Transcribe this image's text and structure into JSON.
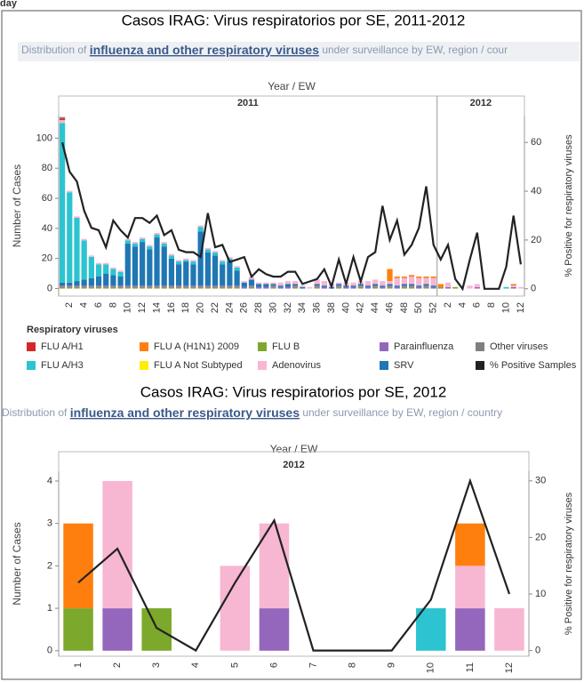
{
  "header": "day",
  "chart_data": [
    {
      "type": "bar",
      "title": "Casos IRAG: Virus respiratorios por SE, 2011-2012",
      "subtitle": [
        "Distribution of ",
        "influenza and other respiratory viruses",
        " under surveillance by EW, region / cour"
      ],
      "x_label": "Year / EW",
      "y_label": "Number of Cases",
      "y2_label": "% Positive for respiratory viruses",
      "legend_title": "Respiratory viruses",
      "groups": [
        {
          "name": "2011",
          "categories": [
            null,
            "2",
            null,
            "4",
            null,
            "6",
            null,
            "8",
            null,
            "10",
            null,
            "12",
            null,
            "14",
            null,
            "16",
            null,
            "18",
            null,
            "20",
            null,
            "22",
            null,
            "24",
            null,
            "26",
            null,
            "28",
            null,
            "30",
            null,
            "32",
            null,
            "34",
            null,
            "36",
            null,
            "38",
            null,
            "40",
            null,
            "42",
            null,
            "44",
            null,
            "46",
            null,
            "48",
            null,
            "50",
            null,
            "52"
          ]
        },
        {
          "name": "2012",
          "categories": [
            null,
            "2",
            null,
            "4",
            null,
            "6",
            null,
            "8",
            null,
            "10",
            null,
            "12"
          ]
        }
      ],
      "series": [
        {
          "name": "FLU A/H1",
          "color": "#d62728",
          "values": [
            1,
            0,
            0,
            0,
            0,
            0,
            0,
            0,
            0,
            0,
            0,
            0,
            0,
            0,
            0,
            0,
            0,
            0,
            0,
            0,
            0,
            0,
            0,
            0,
            0,
            0,
            0,
            0,
            0,
            0,
            0,
            0,
            0,
            0,
            0,
            0,
            0,
            0,
            0,
            0,
            0,
            0,
            0,
            0,
            0,
            0,
            0,
            0,
            0,
            0,
            0,
            0,
            0,
            0,
            0,
            0,
            0,
            0,
            0,
            0,
            0,
            0,
            0,
            0
          ]
        },
        {
          "name": "FLU A/H3",
          "color": "#2bc4d0",
          "values": [
            106,
            60,
            42,
            26,
            14,
            8,
            6,
            4,
            3,
            2,
            2,
            2,
            2,
            2,
            2,
            2,
            2,
            1,
            2,
            3,
            2,
            2,
            2,
            2,
            2,
            0,
            0,
            0,
            0,
            0,
            0,
            0,
            0,
            0,
            0,
            0,
            0,
            0,
            0,
            0,
            0,
            0,
            0,
            0,
            0,
            0,
            0,
            0,
            0,
            0,
            0,
            0,
            0,
            0,
            0,
            0,
            0,
            0,
            0,
            0,
            0,
            1,
            0,
            0
          ]
        },
        {
          "name": "FLU A (H1N1) 2009",
          "color": "#ff7f0e",
          "values": [
            0,
            0,
            0,
            0,
            0,
            0,
            0,
            0,
            0,
            0,
            0,
            0,
            0,
            0,
            0,
            0,
            0,
            0,
            0,
            0,
            0,
            0,
            0,
            0,
            0,
            0,
            0,
            0,
            0,
            0,
            0,
            0,
            0,
            0,
            0,
            0,
            0,
            0,
            0,
            0,
            0,
            0,
            0,
            0,
            0,
            8,
            1,
            1,
            1,
            1,
            1,
            1,
            2,
            0,
            0,
            0,
            0,
            0,
            0,
            0,
            0,
            0,
            1,
            0
          ]
        },
        {
          "name": "FLU A Not Subtyped",
          "color": "#ffee00",
          "values": [
            0,
            0,
            0,
            0,
            0,
            0,
            0,
            0,
            0,
            0,
            0,
            0,
            0,
            0,
            0,
            0,
            0,
            0,
            0,
            0,
            0,
            0,
            0,
            0,
            0,
            0,
            0,
            0,
            0,
            0,
            0,
            0,
            0,
            0,
            0,
            0,
            0,
            0,
            0,
            0,
            0,
            0,
            0,
            0,
            0,
            0,
            0,
            0,
            0,
            0,
            0,
            0,
            0,
            0,
            0,
            0,
            0,
            0,
            0,
            0,
            0,
            0,
            0,
            0
          ]
        },
        {
          "name": "FLU B",
          "color": "#7ca82b",
          "values": [
            1,
            1,
            1,
            1,
            1,
            1,
            1,
            1,
            1,
            1,
            1,
            1,
            1,
            1,
            1,
            1,
            1,
            1,
            1,
            1,
            1,
            1,
            1,
            1,
            1,
            0,
            1,
            0,
            0,
            1,
            0,
            0,
            1,
            0,
            0,
            1,
            0,
            0,
            1,
            0,
            0,
            1,
            0,
            1,
            0,
            1,
            0,
            1,
            1,
            0,
            1,
            0,
            1,
            0,
            1,
            0,
            0,
            0,
            0,
            0,
            0,
            0,
            0,
            0
          ]
        },
        {
          "name": "Adenovirus",
          "color": "#f7b6d2",
          "values": [
            2,
            1,
            1,
            1,
            1,
            1,
            1,
            1,
            1,
            1,
            1,
            1,
            1,
            1,
            1,
            1,
            1,
            1,
            1,
            1,
            1,
            1,
            1,
            1,
            1,
            1,
            2,
            1,
            1,
            1,
            2,
            2,
            2,
            1,
            1,
            3,
            3,
            2,
            1,
            2,
            2,
            2,
            3,
            3,
            3,
            2,
            5,
            4,
            5,
            5,
            4,
            5,
            0,
            3,
            0,
            0,
            2,
            2,
            0,
            0,
            0,
            0,
            1,
            1
          ]
        },
        {
          "name": "Parainfluenza",
          "color": "#9467bd",
          "values": [
            1,
            1,
            1,
            1,
            1,
            1,
            1,
            1,
            1,
            1,
            1,
            1,
            1,
            1,
            1,
            1,
            1,
            1,
            1,
            1,
            1,
            1,
            1,
            1,
            1,
            1,
            1,
            1,
            1,
            1,
            1,
            1,
            1,
            0,
            0,
            1,
            1,
            0,
            1,
            1,
            1,
            1,
            1,
            1,
            1,
            1,
            1,
            1,
            1,
            1,
            1,
            1,
            0,
            1,
            0,
            0,
            0,
            1,
            0,
            0,
            0,
            0,
            1,
            0
          ]
        },
        {
          "name": "SRV",
          "color": "#1f77b4",
          "values": [
            2,
            2,
            3,
            4,
            5,
            6,
            8,
            7,
            6,
            28,
            26,
            29,
            24,
            32,
            26,
            18,
            14,
            16,
            14,
            36,
            22,
            20,
            14,
            16,
            10,
            3,
            4,
            2,
            2,
            1,
            1,
            2,
            1,
            1,
            0,
            1,
            1,
            1,
            1,
            1,
            1,
            1,
            1,
            1,
            1,
            1,
            1,
            1,
            1,
            1,
            1,
            1,
            0,
            0,
            0,
            0,
            0,
            0,
            0,
            0,
            0,
            0,
            0,
            0
          ]
        },
        {
          "name": "Other viruses",
          "color": "#7f7f7f",
          "values": [
            1,
            0,
            0,
            0,
            0,
            0,
            0,
            0,
            0,
            0,
            0,
            0,
            0,
            0,
            0,
            0,
            0,
            0,
            0,
            0,
            0,
            0,
            0,
            0,
            0,
            0,
            0,
            0,
            0,
            0,
            0,
            0,
            0,
            0,
            0,
            0,
            0,
            0,
            0,
            0,
            0,
            0,
            0,
            0,
            0,
            0,
            0,
            0,
            0,
            0,
            0,
            0,
            0,
            0,
            0,
            0,
            0,
            0,
            0,
            0,
            0,
            0,
            0,
            0
          ]
        },
        {
          "name": "% Positive Samples",
          "type": "line",
          "axis": "y2",
          "color": "#222222",
          "values": [
            60,
            48,
            44,
            32,
            25,
            24,
            17,
            28,
            24,
            21,
            29,
            29,
            27,
            30,
            22,
            24,
            16,
            15,
            15,
            13,
            31,
            17,
            18,
            11,
            12,
            13,
            5,
            8,
            6,
            5,
            5,
            7,
            7,
            2,
            3,
            4,
            8,
            1,
            12,
            2,
            13,
            3,
            13,
            15,
            34,
            20,
            28,
            14,
            18,
            25,
            42,
            18,
            12,
            18,
            4,
            0,
            12,
            23,
            0,
            0,
            0,
            9,
            30,
            10
          ]
        }
      ],
      "ylim": [
        -5,
        115
      ],
      "yticks": [
        0,
        20,
        40,
        60,
        80,
        100
      ],
      "y2lim": [
        -3,
        71
      ],
      "y2ticks": [
        0,
        20,
        40,
        60
      ]
    },
    {
      "type": "bar",
      "title": "Casos IRAG: Virus respiratorios por SE, 2012",
      "subtitle": [
        "Distribution of ",
        "influenza and other respiratory viruses",
        " under surveillance by EW, region / country"
      ],
      "x_label": "Year / EW",
      "y_label": "Number of Cases",
      "y2_label": "% Positive for respiratory viruses",
      "groups": [
        {
          "name": "2012",
          "categories": [
            "1",
            "2",
            "3",
            "4",
            "5",
            "6",
            "7",
            "8",
            "9",
            "10",
            "11",
            "12"
          ]
        }
      ],
      "series": [
        {
          "color": "#7ca82b",
          "values": [
            1,
            0,
            1,
            0,
            0,
            0,
            0,
            0,
            0,
            0,
            0,
            0
          ]
        },
        {
          "color": "#9467bd",
          "values": [
            0,
            1,
            0,
            0,
            0,
            1,
            0,
            0,
            0,
            0,
            1,
            0
          ]
        },
        {
          "color": "#2bc4d0",
          "values": [
            0,
            0,
            0,
            0,
            0,
            0,
            0,
            0,
            0,
            1,
            0,
            0
          ]
        },
        {
          "color": "#f7b6d2",
          "values": [
            0,
            3,
            0,
            0,
            2,
            2,
            0,
            0,
            0,
            0,
            1,
            1
          ]
        },
        {
          "color": "#ff7f0e",
          "values": [
            2,
            0,
            0,
            0,
            0,
            0,
            0,
            0,
            0,
            0,
            1,
            0
          ]
        },
        {
          "type": "line",
          "axis": "y2",
          "color": "#222222",
          "values": [
            12,
            18,
            4,
            0,
            12,
            23,
            0,
            0,
            0,
            9,
            30,
            10
          ]
        }
      ],
      "ylim": [
        -0.13,
        4.23
      ],
      "yticks": [
        0,
        1,
        2,
        3,
        4
      ],
      "y2lim": [
        -1,
        31.7
      ],
      "y2ticks": [
        0,
        10,
        20,
        30
      ]
    }
  ]
}
